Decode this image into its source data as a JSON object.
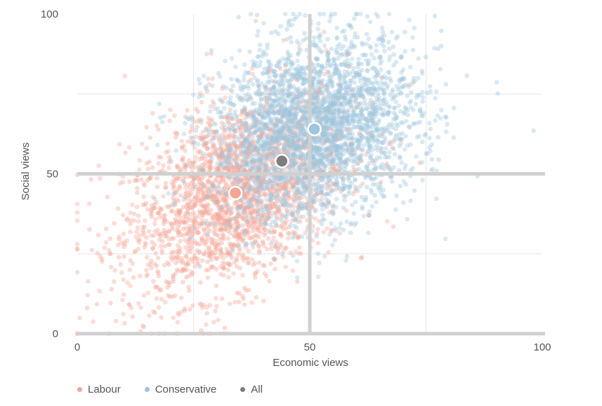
{
  "chart_data": {
    "type": "scatter",
    "title": "",
    "xlabel": "Economic views",
    "ylabel": "Social views",
    "xlim": [
      0,
      100
    ],
    "ylim": [
      0,
      100
    ],
    "x_ticks": [
      "0",
      "50",
      "100"
    ],
    "y_ticks": [
      "0",
      "50",
      "100"
    ],
    "grid": true,
    "legend_position": "bottom-left",
    "series": [
      {
        "name": "Labour",
        "color": "#f4a596",
        "mean": {
          "x": 34,
          "y": 44
        },
        "spread": {
          "x": 12,
          "y": 16
        },
        "approx_point_count": 2400
      },
      {
        "name": "Conservative",
        "color": "#9ec4de",
        "mean": {
          "x": 51,
          "y": 64
        },
        "spread": {
          "x": 11,
          "y": 14
        },
        "approx_point_count": 3000
      },
      {
        "name": "All",
        "color": "#7d7d7d",
        "mean": {
          "x": 44,
          "y": 54
        }
      }
    ]
  }
}
